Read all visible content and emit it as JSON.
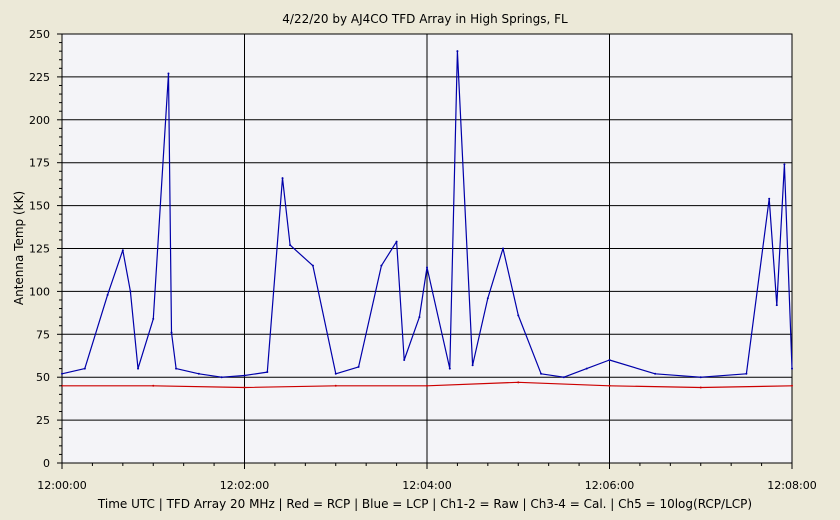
{
  "chart_data": {
    "type": "line",
    "title": "4/22/20  by  AJ4CO TFD Array  in  High Springs, FL",
    "ylabel": "Antenna Temp (kK)",
    "xlabel": "Time UTC | TFD Array 20 MHz | Red = RCP | Blue = LCP | Ch1-2 = Raw | Ch3-4 = Cal. | Ch5 = 10log(RCP/LCP)",
    "xlim": [
      "12:00:00",
      "12:08:00"
    ],
    "ylim": [
      0,
      250
    ],
    "grid": true,
    "x_tick_labels": [
      "12:00:00",
      "12:02:00",
      "12:04:00",
      "12:06:00",
      "12:08:00"
    ],
    "y_tick_labels": [
      "0",
      "25",
      "50",
      "75",
      "100",
      "125",
      "150",
      "175",
      "200",
      "225",
      "250"
    ],
    "series": [
      {
        "color": "#0000aa",
        "x": [
          "12:00:00",
          "12:00:15",
          "12:00:30",
          "12:00:40",
          "12:00:45",
          "12:00:50",
          "12:01:00",
          "12:01:10",
          "12:01:12",
          "12:01:15",
          "12:01:30",
          "12:01:45",
          "12:02:00",
          "12:02:15",
          "12:02:25",
          "12:02:30",
          "12:02:45",
          "12:03:00",
          "12:03:15",
          "12:03:30",
          "12:03:40",
          "12:03:45",
          "12:03:55",
          "12:04:00",
          "12:04:15",
          "12:04:20",
          "12:04:30",
          "12:04:40",
          "12:04:50",
          "12:05:00",
          "12:05:15",
          "12:05:30",
          "12:05:45",
          "12:06:00",
          "12:06:30",
          "12:07:00",
          "12:07:30",
          "12:07:45",
          "12:07:50",
          "12:07:55",
          "12:08:00"
        ],
        "values": [
          52,
          55,
          98,
          124,
          100,
          55,
          84,
          227,
          76,
          55,
          52,
          50,
          51,
          53,
          166,
          127,
          115,
          52,
          56,
          115,
          129,
          60,
          85,
          114,
          55,
          240,
          57,
          96,
          125,
          86,
          52,
          50,
          55,
          60,
          52,
          50,
          52,
          154,
          92,
          174,
          55
        ]
      },
      {
        "color": "#cc0000",
        "x": [
          "12:00:00",
          "12:01:00",
          "12:02:00",
          "12:03:00",
          "12:04:00",
          "12:05:00",
          "12:06:00",
          "12:07:00",
          "12:08:00"
        ],
        "values": [
          45,
          45,
          44,
          45,
          45,
          47,
          45,
          44,
          45
        ]
      }
    ]
  }
}
